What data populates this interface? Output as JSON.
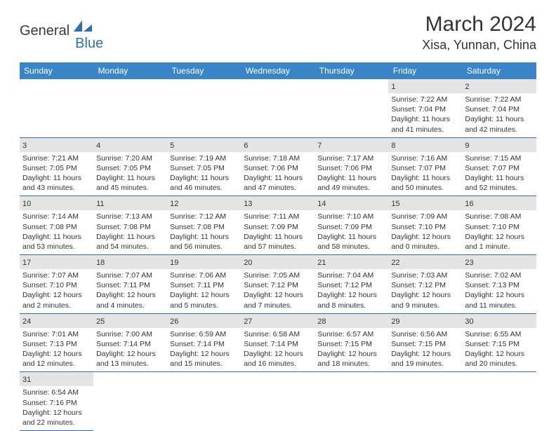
{
  "logo": {
    "part1": "General",
    "part2": "Blue"
  },
  "title": {
    "month_year": "March 2024",
    "location": "Xisa, Yunnan, China"
  },
  "styling": {
    "header_bg": "#3a85c7",
    "header_text": "#ffffff",
    "daynum_bg": "#e4e4e4",
    "border_color": "#2d6fb5",
    "text_color": "#333333",
    "logo_blue": "#2d6fb5",
    "page_bg": "#ffffff",
    "dayname_fontsize": 12,
    "daynum_fontsize": 11,
    "detail_fontsize": 10.5,
    "title_fontsize": 30,
    "location_fontsize": 18
  },
  "daynames": [
    "Sunday",
    "Monday",
    "Tuesday",
    "Wednesday",
    "Thursday",
    "Friday",
    "Saturday"
  ],
  "weeks": [
    [
      null,
      null,
      null,
      null,
      null,
      {
        "n": "1",
        "sr": "Sunrise: 7:22 AM",
        "ss": "Sunset: 7:04 PM",
        "dl": "Daylight: 11 hours and 41 minutes."
      },
      {
        "n": "2",
        "sr": "Sunrise: 7:22 AM",
        "ss": "Sunset: 7:04 PM",
        "dl": "Daylight: 11 hours and 42 minutes."
      }
    ],
    [
      {
        "n": "3",
        "sr": "Sunrise: 7:21 AM",
        "ss": "Sunset: 7:05 PM",
        "dl": "Daylight: 11 hours and 43 minutes."
      },
      {
        "n": "4",
        "sr": "Sunrise: 7:20 AM",
        "ss": "Sunset: 7:05 PM",
        "dl": "Daylight: 11 hours and 45 minutes."
      },
      {
        "n": "5",
        "sr": "Sunrise: 7:19 AM",
        "ss": "Sunset: 7:05 PM",
        "dl": "Daylight: 11 hours and 46 minutes."
      },
      {
        "n": "6",
        "sr": "Sunrise: 7:18 AM",
        "ss": "Sunset: 7:06 PM",
        "dl": "Daylight: 11 hours and 47 minutes."
      },
      {
        "n": "7",
        "sr": "Sunrise: 7:17 AM",
        "ss": "Sunset: 7:06 PM",
        "dl": "Daylight: 11 hours and 49 minutes."
      },
      {
        "n": "8",
        "sr": "Sunrise: 7:16 AM",
        "ss": "Sunset: 7:07 PM",
        "dl": "Daylight: 11 hours and 50 minutes."
      },
      {
        "n": "9",
        "sr": "Sunrise: 7:15 AM",
        "ss": "Sunset: 7:07 PM",
        "dl": "Daylight: 11 hours and 52 minutes."
      }
    ],
    [
      {
        "n": "10",
        "sr": "Sunrise: 7:14 AM",
        "ss": "Sunset: 7:08 PM",
        "dl": "Daylight: 11 hours and 53 minutes."
      },
      {
        "n": "11",
        "sr": "Sunrise: 7:13 AM",
        "ss": "Sunset: 7:08 PM",
        "dl": "Daylight: 11 hours and 54 minutes."
      },
      {
        "n": "12",
        "sr": "Sunrise: 7:12 AM",
        "ss": "Sunset: 7:08 PM",
        "dl": "Daylight: 11 hours and 56 minutes."
      },
      {
        "n": "13",
        "sr": "Sunrise: 7:11 AM",
        "ss": "Sunset: 7:09 PM",
        "dl": "Daylight: 11 hours and 57 minutes."
      },
      {
        "n": "14",
        "sr": "Sunrise: 7:10 AM",
        "ss": "Sunset: 7:09 PM",
        "dl": "Daylight: 11 hours and 58 minutes."
      },
      {
        "n": "15",
        "sr": "Sunrise: 7:09 AM",
        "ss": "Sunset: 7:10 PM",
        "dl": "Daylight: 12 hours and 0 minutes."
      },
      {
        "n": "16",
        "sr": "Sunrise: 7:08 AM",
        "ss": "Sunset: 7:10 PM",
        "dl": "Daylight: 12 hours and 1 minute."
      }
    ],
    [
      {
        "n": "17",
        "sr": "Sunrise: 7:07 AM",
        "ss": "Sunset: 7:10 PM",
        "dl": "Daylight: 12 hours and 2 minutes."
      },
      {
        "n": "18",
        "sr": "Sunrise: 7:07 AM",
        "ss": "Sunset: 7:11 PM",
        "dl": "Daylight: 12 hours and 4 minutes."
      },
      {
        "n": "19",
        "sr": "Sunrise: 7:06 AM",
        "ss": "Sunset: 7:11 PM",
        "dl": "Daylight: 12 hours and 5 minutes."
      },
      {
        "n": "20",
        "sr": "Sunrise: 7:05 AM",
        "ss": "Sunset: 7:12 PM",
        "dl": "Daylight: 12 hours and 7 minutes."
      },
      {
        "n": "21",
        "sr": "Sunrise: 7:04 AM",
        "ss": "Sunset: 7:12 PM",
        "dl": "Daylight: 12 hours and 8 minutes."
      },
      {
        "n": "22",
        "sr": "Sunrise: 7:03 AM",
        "ss": "Sunset: 7:12 PM",
        "dl": "Daylight: 12 hours and 9 minutes."
      },
      {
        "n": "23",
        "sr": "Sunrise: 7:02 AM",
        "ss": "Sunset: 7:13 PM",
        "dl": "Daylight: 12 hours and 11 minutes."
      }
    ],
    [
      {
        "n": "24",
        "sr": "Sunrise: 7:01 AM",
        "ss": "Sunset: 7:13 PM",
        "dl": "Daylight: 12 hours and 12 minutes."
      },
      {
        "n": "25",
        "sr": "Sunrise: 7:00 AM",
        "ss": "Sunset: 7:14 PM",
        "dl": "Daylight: 12 hours and 13 minutes."
      },
      {
        "n": "26",
        "sr": "Sunrise: 6:59 AM",
        "ss": "Sunset: 7:14 PM",
        "dl": "Daylight: 12 hours and 15 minutes."
      },
      {
        "n": "27",
        "sr": "Sunrise: 6:58 AM",
        "ss": "Sunset: 7:14 PM",
        "dl": "Daylight: 12 hours and 16 minutes."
      },
      {
        "n": "28",
        "sr": "Sunrise: 6:57 AM",
        "ss": "Sunset: 7:15 PM",
        "dl": "Daylight: 12 hours and 18 minutes."
      },
      {
        "n": "29",
        "sr": "Sunrise: 6:56 AM",
        "ss": "Sunset: 7:15 PM",
        "dl": "Daylight: 12 hours and 19 minutes."
      },
      {
        "n": "30",
        "sr": "Sunrise: 6:55 AM",
        "ss": "Sunset: 7:15 PM",
        "dl": "Daylight: 12 hours and 20 minutes."
      }
    ],
    [
      {
        "n": "31",
        "sr": "Sunrise: 6:54 AM",
        "ss": "Sunset: 7:16 PM",
        "dl": "Daylight: 12 hours and 22 minutes."
      },
      null,
      null,
      null,
      null,
      null,
      null
    ]
  ]
}
